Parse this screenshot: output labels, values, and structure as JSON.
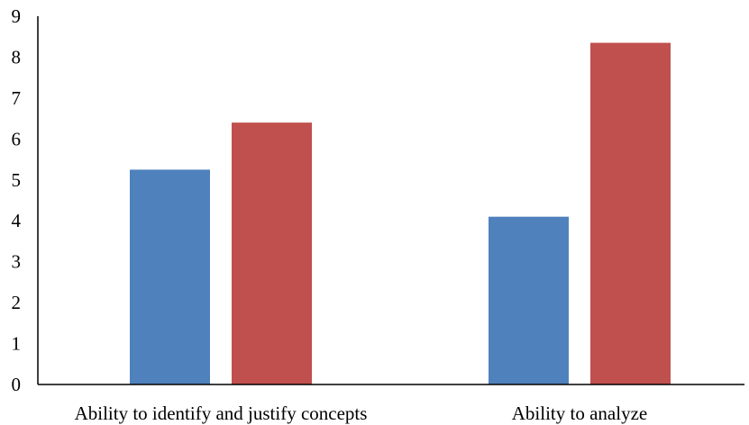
{
  "chart_data": {
    "type": "bar",
    "categories": [
      "Ability to identify and justify concepts",
      "Ability to analyze"
    ],
    "series": [
      {
        "values": [
          5.25,
          4.1
        ],
        "color": "#4f81bd"
      },
      {
        "values": [
          6.4,
          8.35
        ],
        "color": "#c0504d"
      }
    ],
    "yticks": [
      "0",
      "1",
      "2",
      "3",
      "4",
      "5",
      "6",
      "7",
      "8",
      "9"
    ],
    "ylim": [
      0,
      9
    ],
    "grid": false,
    "legend": "none"
  }
}
